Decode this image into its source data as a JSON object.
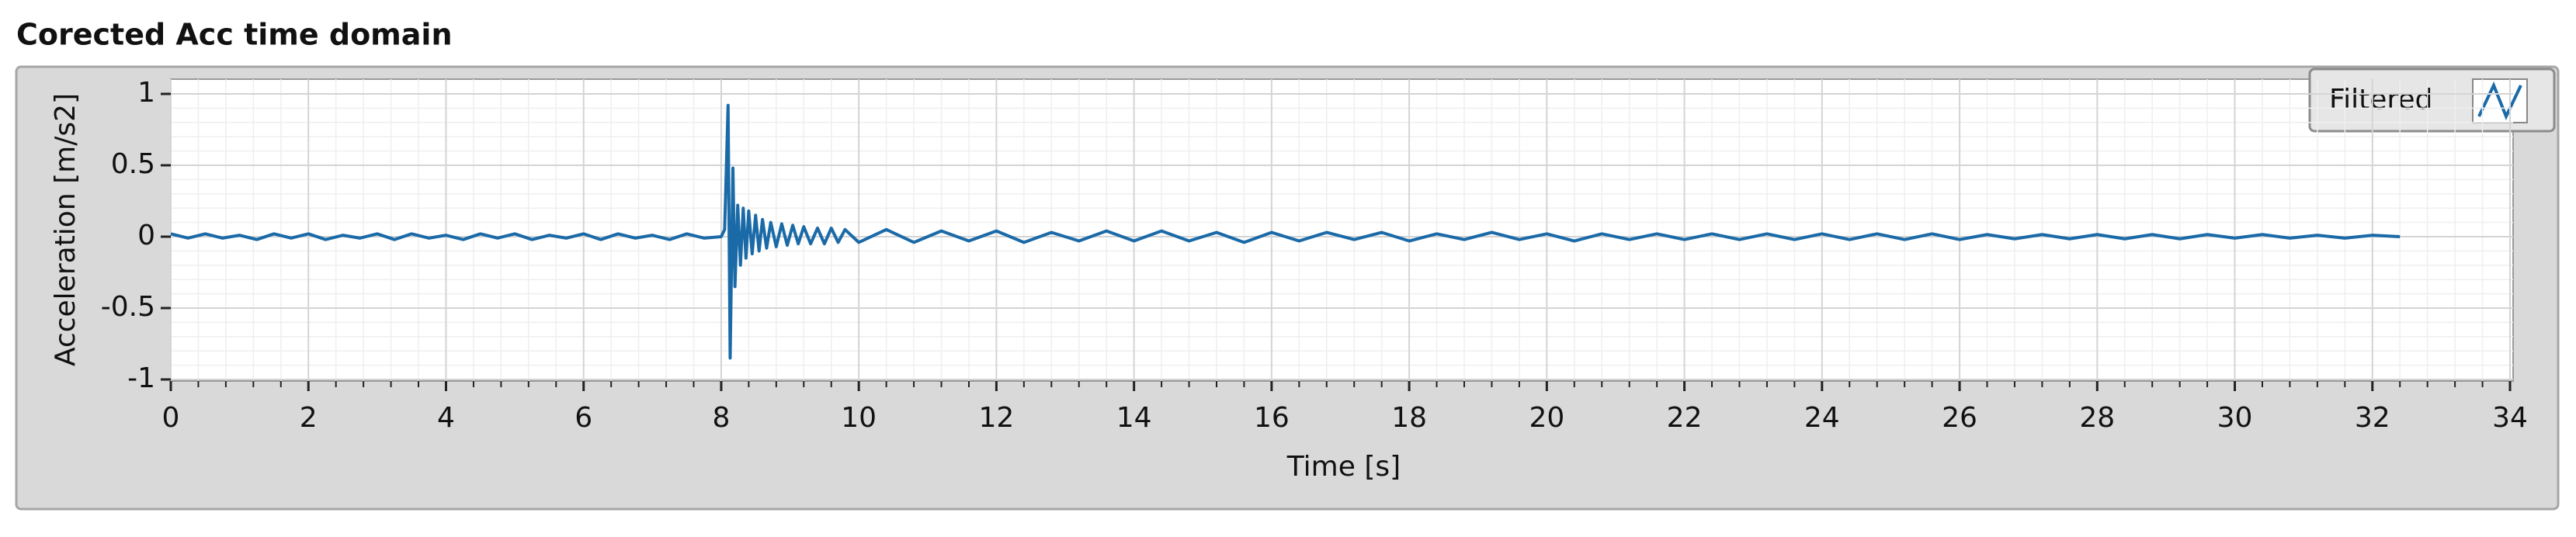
{
  "chart_data": {
    "type": "line",
    "title": "Corected Acc time domain",
    "x_label": "Time [s]",
    "y_label": "Acceleration [m/s2]",
    "xlim": [
      0,
      34
    ],
    "ylim": [
      -1,
      1
    ],
    "xticks": [
      0,
      2,
      4,
      6,
      8,
      10,
      12,
      14,
      16,
      18,
      20,
      22,
      24,
      26,
      28,
      30,
      32,
      34
    ],
    "yticks": [
      -1,
      -0.5,
      0,
      0.5,
      1
    ],
    "grid": true,
    "minor_grid": true,
    "legend": "top-right",
    "x": [
      0,
      0.25,
      0.5,
      0.75,
      1,
      1.25,
      1.5,
      1.75,
      2,
      2.25,
      2.5,
      2.75,
      3,
      3.25,
      3.5,
      3.75,
      4,
      4.25,
      4.5,
      4.75,
      5,
      5.25,
      5.5,
      5.75,
      6,
      6.25,
      6.5,
      6.75,
      7,
      7.25,
      7.5,
      7.75,
      8,
      8.05,
      8.1,
      8.13,
      8.17,
      8.2,
      8.24,
      8.28,
      8.32,
      8.36,
      8.4,
      8.45,
      8.5,
      8.55,
      8.6,
      8.66,
      8.72,
      8.8,
      8.88,
      8.96,
      9.04,
      9.12,
      9.2,
      9.3,
      9.4,
      9.5,
      9.6,
      9.7,
      9.8,
      10,
      10.4,
      10.8,
      11.2,
      11.6,
      12,
      12.4,
      12.8,
      13.2,
      13.6,
      14,
      14.4,
      14.8,
      15.2,
      15.6,
      16,
      16.4,
      16.8,
      17.2,
      17.6,
      18,
      18.4,
      18.8,
      19.2,
      19.6,
      20,
      20.4,
      20.8,
      21.2,
      21.6,
      22,
      22.4,
      22.8,
      23.2,
      23.6,
      24,
      24.4,
      24.8,
      25.2,
      25.6,
      26,
      26.4,
      26.8,
      27.2,
      27.6,
      28,
      28.4,
      28.8,
      29.2,
      29.6,
      30,
      30.4,
      30.8,
      31.2,
      31.6,
      32,
      32.4
    ],
    "series": [
      {
        "name": "Filtered",
        "color": "#1b6aa8",
        "values": [
          0.02,
          -0.01,
          0.02,
          -0.01,
          0.01,
          -0.02,
          0.02,
          -0.01,
          0.02,
          -0.02,
          0.01,
          -0.01,
          0.02,
          -0.02,
          0.02,
          -0.01,
          0.01,
          -0.02,
          0.02,
          -0.01,
          0.02,
          -0.02,
          0.01,
          -0.01,
          0.02,
          -0.02,
          0.02,
          -0.01,
          0.01,
          -0.02,
          0.02,
          -0.01,
          0,
          0.05,
          0.92,
          -0.85,
          0.48,
          -0.35,
          0.22,
          -0.2,
          0.2,
          -0.15,
          0.18,
          -0.12,
          0.15,
          -0.1,
          0.12,
          -0.08,
          0.1,
          -0.07,
          0.09,
          -0.06,
          0.08,
          -0.05,
          0.07,
          -0.05,
          0.06,
          -0.05,
          0.06,
          -0.04,
          0.05,
          -0.04,
          0.05,
          -0.04,
          0.04,
          -0.03,
          0.04,
          -0.04,
          0.03,
          -0.03,
          0.04,
          -0.03,
          0.04,
          -0.03,
          0.03,
          -0.04,
          0.03,
          -0.03,
          0.03,
          -0.02,
          0.03,
          -0.03,
          0.02,
          -0.02,
          0.03,
          -0.02,
          0.02,
          -0.03,
          0.02,
          -0.02,
          0.02,
          -0.02,
          0.02,
          -0.02,
          0.02,
          -0.02,
          0.02,
          -0.02,
          0.02,
          -0.02,
          0.02,
          -0.02,
          0.015,
          -0.015,
          0.015,
          -0.015,
          0.015,
          -0.015,
          0.015,
          -0.015,
          0.015,
          -0.01,
          0.015,
          -0.01,
          0.01,
          -0.01,
          0.01,
          0
        ]
      }
    ]
  }
}
